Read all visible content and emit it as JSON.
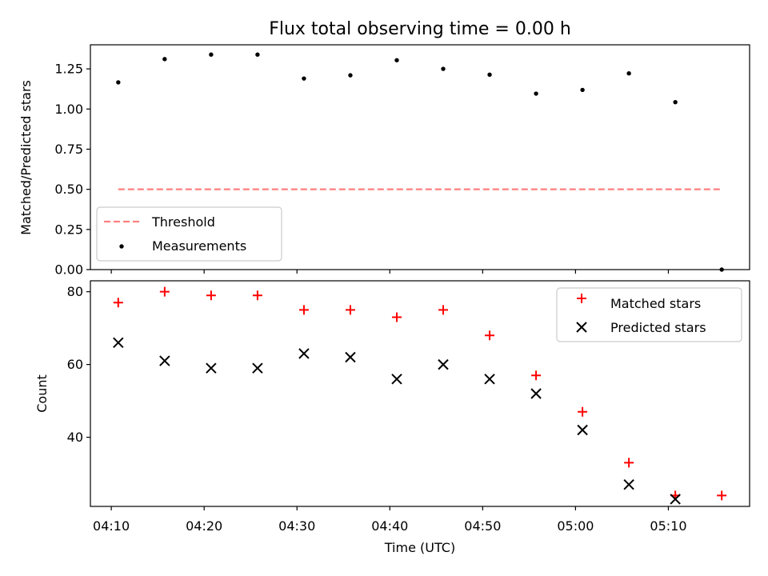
{
  "chart_data": [
    {
      "type": "line",
      "title": "Flux total observing time = 0.00 h",
      "xlabel": "",
      "ylabel": "Matched/Predicted stars",
      "ylim": [
        0,
        1.4
      ],
      "y_ticks": [
        "0.00",
        "0.25",
        "0.50",
        "0.75",
        "1.00",
        "1.25"
      ],
      "y_tick_values": [
        0,
        0.25,
        0.5,
        0.75,
        1.0,
        1.25
      ],
      "x_tick_labels_visible": false,
      "grid": false,
      "legend_position": "lower-left",
      "series": [
        {
          "name": "Threshold",
          "style": "dashed-line",
          "color": "#ff7f7f",
          "x": [
            "04:10:45",
            "05:15:45"
          ],
          "values": [
            0.5,
            0.5
          ]
        },
        {
          "name": "Measurements",
          "style": "scatter-dot",
          "color": "#000000",
          "x": [
            "04:10:45",
            "04:15:45",
            "04:20:45",
            "04:25:45",
            "04:30:45",
            "04:35:45",
            "04:40:45",
            "04:45:45",
            "04:50:45",
            "04:55:45",
            "05:00:45",
            "05:05:45",
            "05:10:45",
            "05:15:45"
          ],
          "values": [
            1.166,
            1.311,
            1.339,
            1.339,
            1.19,
            1.21,
            1.304,
            1.25,
            1.214,
            1.096,
            1.119,
            1.222,
            1.043,
            0.0
          ]
        }
      ]
    },
    {
      "type": "scatter",
      "title": "",
      "xlabel": "Time (UTC)",
      "ylabel": "Count",
      "xlim": [
        "04:07:45",
        "05:18:45"
      ],
      "ylim": [
        21,
        83
      ],
      "x_ticks": [
        "04:10",
        "04:20",
        "04:30",
        "04:40",
        "04:50",
        "05:00",
        "05:10"
      ],
      "x_tick_values": [
        "04:10:00",
        "04:20:00",
        "04:30:00",
        "04:40:00",
        "04:50:00",
        "05:00:00",
        "05:10:00"
      ],
      "y_ticks": [
        "40",
        "60",
        "80"
      ],
      "y_tick_values": [
        40,
        60,
        80
      ],
      "grid": false,
      "legend_position": "upper-right",
      "series": [
        {
          "name": "Matched stars",
          "marker": "plus",
          "color": "#ff0000",
          "x": [
            "04:10:45",
            "04:15:45",
            "04:20:45",
            "04:25:45",
            "04:30:45",
            "04:35:45",
            "04:40:45",
            "04:45:45",
            "04:50:45",
            "04:55:45",
            "05:00:45",
            "05:05:45",
            "05:10:45",
            "05:15:45"
          ],
          "values": [
            77,
            80,
            79,
            79,
            75,
            75,
            73,
            75,
            68,
            57,
            47,
            33,
            24,
            24
          ]
        },
        {
          "name": "Predicted stars",
          "marker": "x",
          "color": "#000000",
          "x": [
            "04:10:45",
            "04:15:45",
            "04:20:45",
            "04:25:45",
            "04:30:45",
            "04:35:45",
            "04:40:45",
            "04:45:45",
            "04:50:45",
            "04:55:45",
            "05:00:45",
            "05:05:45",
            "05:10:45"
          ],
          "values": [
            66,
            61,
            59,
            59,
            63,
            62,
            56,
            60,
            56,
            52,
            42,
            27,
            23
          ]
        }
      ]
    }
  ]
}
